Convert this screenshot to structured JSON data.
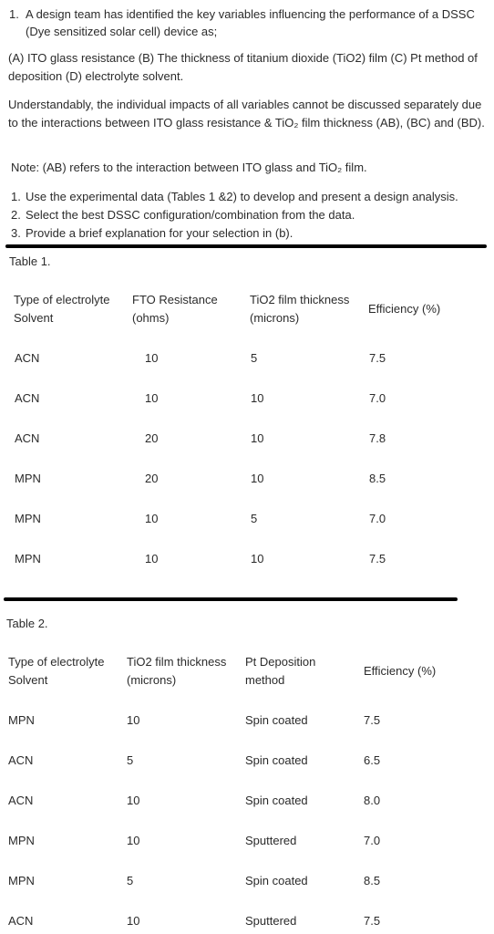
{
  "question": {
    "number": "1.",
    "text": "A design team has identified the key variables influencing the performance of a DSSC (Dye sensitized solar cell) device as;"
  },
  "variables": "(A) ITO glass resistance (B) The thickness of titanium dioxide (TiO2) film (C) Pt method of deposition (D) electrolyte solvent.",
  "interactions": "Understandably, the individual impacts of all variables cannot be discussed separately due to the interactions between ITO glass resistance & TiO₂ film thickness (AB), (BC) and (BD).",
  "note": "Note: (AB) refers to the interaction between ITO glass and TiO₂ film.",
  "tasks": [
    {
      "n": "1.",
      "text": "Use the experimental data (Tables 1 &2) to develop and present a design analysis."
    },
    {
      "n": "2.",
      "text": "Select the best DSSC configuration/combination from the data."
    },
    {
      "n": "3.",
      "text": "Provide a brief explanation for your selection in (b)."
    }
  ],
  "table1": {
    "title": "Table 1.",
    "headers": [
      [
        "Type of electrolyte",
        "Solvent"
      ],
      [
        "FTO Resistance",
        "(ohms)"
      ],
      [
        "TiO2 film thickness",
        "(microns)"
      ],
      [
        "Efficiency (%)"
      ]
    ],
    "rows": [
      [
        "ACN",
        "10",
        "5",
        "7.5"
      ],
      [
        "ACN",
        "10",
        "10",
        "7.0"
      ],
      [
        "ACN",
        "20",
        "10",
        "7.8"
      ],
      [
        "MPN",
        "20",
        "10",
        "8.5"
      ],
      [
        "MPN",
        "10",
        "5",
        "7.0"
      ],
      [
        "MPN",
        "10",
        "10",
        "7.5"
      ]
    ]
  },
  "table2": {
    "title": "Table 2.",
    "headers": [
      [
        "Type of electrolyte",
        "Solvent"
      ],
      [
        "TiO2 film thickness",
        "(microns)"
      ],
      [
        "Pt Deposition",
        "method"
      ],
      [
        "Efficiency (%)"
      ]
    ],
    "rows": [
      [
        "MPN",
        "10",
        "Spin coated",
        "7.5"
      ],
      [
        "ACN",
        "5",
        "Spin coated",
        "6.5"
      ],
      [
        "ACN",
        "10",
        "Spin coated",
        "8.0"
      ],
      [
        "MPN",
        "10",
        "Sputtered",
        "7.0"
      ],
      [
        "MPN",
        "5",
        "Spin coated",
        "8.5"
      ],
      [
        "ACN",
        "10",
        "Sputtered",
        "7.5"
      ]
    ]
  }
}
